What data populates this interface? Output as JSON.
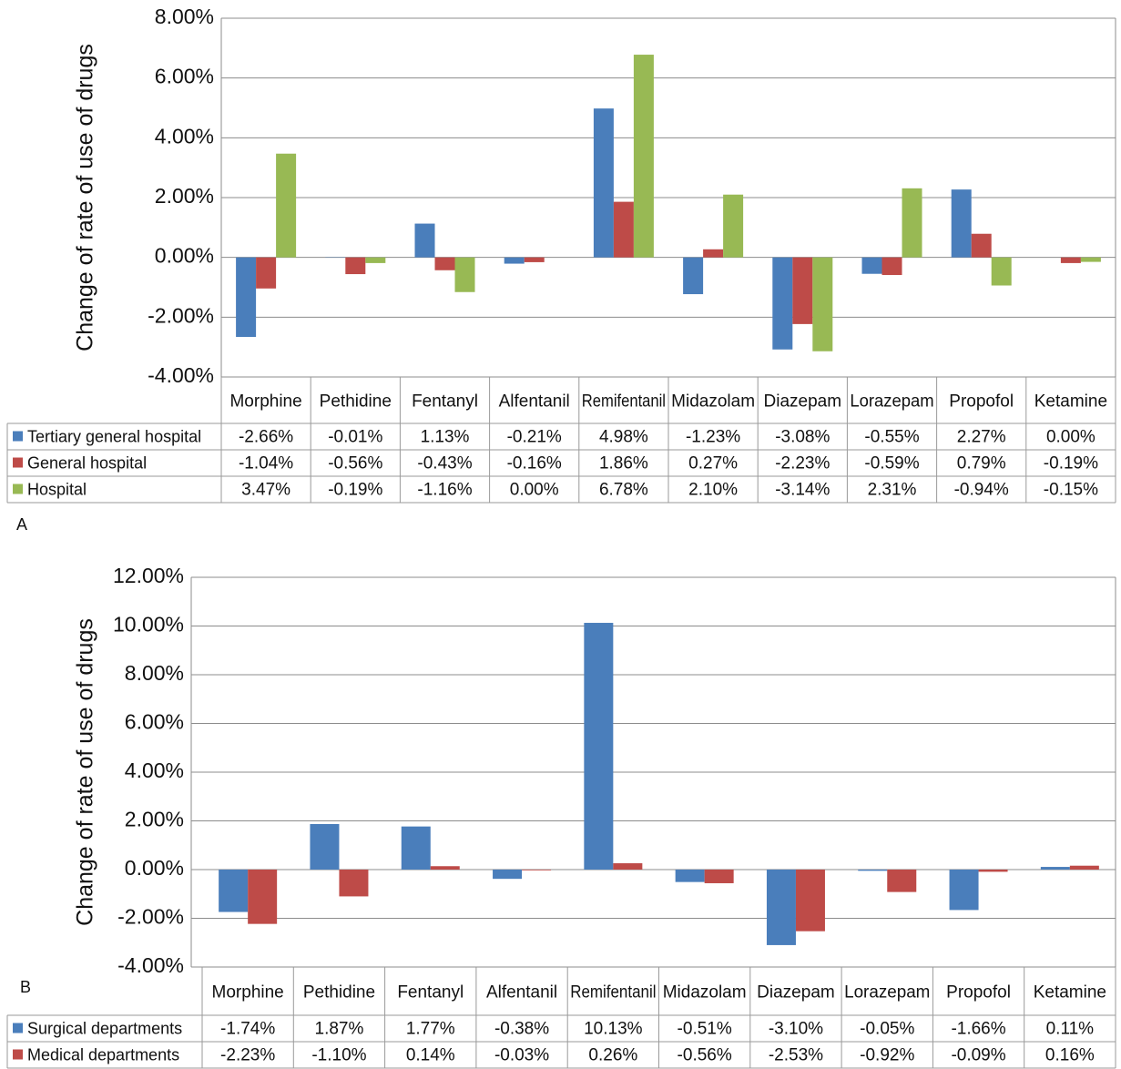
{
  "chart_data": [
    {
      "type": "bar",
      "label": "A",
      "ylabel": "Change of rate of use of drugs",
      "categories": [
        "Morphine",
        "Pethidine",
        "Fentanyl",
        "Alfentanil",
        "Remifentanil",
        "Midazolam",
        "Diazepam",
        "Lorazepam",
        "Propofol",
        "Ketamine"
      ],
      "series": [
        {
          "name": "Tertiary general hospital",
          "color": "#4a7ebb",
          "values": [
            -2.66,
            -0.01,
            1.13,
            -0.21,
            4.98,
            -1.23,
            -3.08,
            -0.55,
            2.27,
            0.0
          ],
          "value_labels": [
            "-2.66%",
            "-0.01%",
            "1.13%",
            "-0.21%",
            "4.98%",
            "-1.23%",
            "-3.08%",
            "-0.55%",
            "2.27%",
            "0.00%"
          ]
        },
        {
          "name": "General hospital",
          "color": "#be4b48",
          "values": [
            -1.04,
            -0.56,
            -0.43,
            -0.16,
            1.86,
            0.27,
            -2.23,
            -0.59,
            0.79,
            -0.19
          ],
          "value_labels": [
            "-1.04%",
            "-0.56%",
            "-0.43%",
            "-0.16%",
            "1.86%",
            "0.27%",
            "-2.23%",
            "-0.59%",
            "0.79%",
            "-0.19%"
          ]
        },
        {
          "name": "Hospital",
          "color": "#98b954",
          "values": [
            3.47,
            -0.19,
            -1.16,
            0.0,
            6.78,
            2.1,
            -3.14,
            2.31,
            -0.94,
            -0.15
          ],
          "value_labels": [
            "3.47%",
            "-0.19%",
            "-1.16%",
            "0.00%",
            "6.78%",
            "2.10%",
            "-3.14%",
            "2.31%",
            "-0.94%",
            "-0.15%"
          ]
        }
      ],
      "ylim": [
        -4,
        8
      ],
      "yticks": [
        {
          "value": -4,
          "label": "-4.00%"
        },
        {
          "value": -2,
          "label": "-2.00%"
        },
        {
          "value": 0,
          "label": "0.00%"
        },
        {
          "value": 2,
          "label": "2.00%"
        },
        {
          "value": 4,
          "label": "4.00%"
        },
        {
          "value": 6,
          "label": "6.00%"
        },
        {
          "value": 8,
          "label": "8.00%"
        }
      ],
      "grid": true
    },
    {
      "type": "bar",
      "label": "B",
      "ylabel": "Change of rate of use of drugs",
      "categories": [
        "Morphine",
        "Pethidine",
        "Fentanyl",
        "Alfentanil",
        "Remifentanil",
        "Midazolam",
        "Diazepam",
        "Lorazepam",
        "Propofol",
        "Ketamine"
      ],
      "series": [
        {
          "name": "Surgical departments",
          "color": "#4a7ebb",
          "values": [
            -1.74,
            1.87,
            1.77,
            -0.38,
            10.13,
            -0.51,
            -3.1,
            -0.05,
            -1.66,
            0.11
          ],
          "value_labels": [
            "-1.74%",
            "1.87%",
            "1.77%",
            "-0.38%",
            "10.13%",
            "-0.51%",
            "-3.10%",
            "-0.05%",
            "-1.66%",
            "0.11%"
          ]
        },
        {
          "name": "Medical departments",
          "color": "#be4b48",
          "values": [
            -2.23,
            -1.1,
            0.14,
            -0.03,
            0.26,
            -0.56,
            -2.53,
            -0.92,
            -0.09,
            0.16
          ],
          "value_labels": [
            "-2.23%",
            "-1.10%",
            "0.14%",
            "-0.03%",
            "0.26%",
            "-0.56%",
            "-2.53%",
            "-0.92%",
            "-0.09%",
            "0.16%"
          ]
        }
      ],
      "ylim": [
        -4,
        12
      ],
      "yticks": [
        {
          "value": -4,
          "label": "-4.00%"
        },
        {
          "value": -2,
          "label": "-2.00%"
        },
        {
          "value": 0,
          "label": "0.00%"
        },
        {
          "value": 2,
          "label": "2.00%"
        },
        {
          "value": 4,
          "label": "4.00%"
        },
        {
          "value": 6,
          "label": "6.00%"
        },
        {
          "value": 8,
          "label": "8.00%"
        },
        {
          "value": 10,
          "label": "10.00%"
        },
        {
          "value": 12,
          "label": "12.00%"
        }
      ],
      "grid": true
    }
  ]
}
